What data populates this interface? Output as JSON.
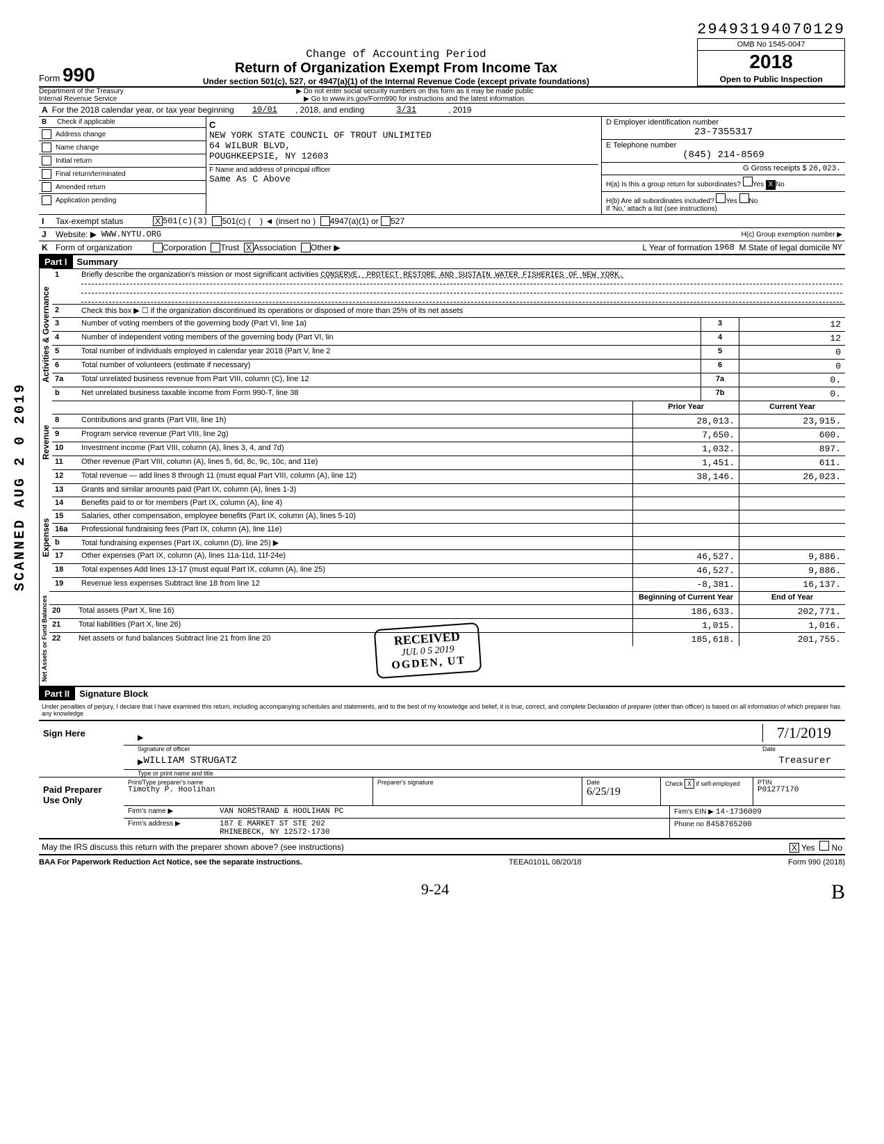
{
  "dln": "29493194070129",
  "form_no": "990",
  "form_word": "Form",
  "header": {
    "change": "Change of Accounting Period",
    "title": "Return of Organization Exempt From Income Tax",
    "sub": "Under section 501(c), 527, or 4947(a)(1) of the Internal Revenue Code (except private foundations)",
    "note1": "▶ Do not enter social security numbers on this form as it may be made public",
    "note2": "▶ Go to www.irs.gov/Form990 for instructions and the latest information.",
    "omb": "OMB No 1545-0047",
    "year": "2018",
    "open": "Open to Public Inspection"
  },
  "dept": {
    "l1": "Department of the Treasury",
    "l2": "Internal Revenue Service"
  },
  "row_a": {
    "pre": "For the 2018 calendar year, or tax year beginning",
    "begin": "10/01",
    "mid": ", 2018, and ending",
    "end": "3/31",
    "post": ", 2019"
  },
  "b_left": {
    "head": "Check if applicable",
    "items": [
      "Address change",
      "Name change",
      "Initial return",
      "Final return/terminated",
      "Amended return",
      "Application pending"
    ]
  },
  "b_mid": {
    "c_label": "C",
    "name": "NEW YORK STATE COUNCIL OF TROUT UNLIMITED",
    "addr1": "64 WILBUR BLVD,",
    "addr2": "POUGHKEEPSIE, NY 12603",
    "f_label": "F  Name and address of principal officer",
    "f_val": "Same As C Above"
  },
  "b_right": {
    "d_label": "D  Employer identification number",
    "d_val": "23-7355317",
    "e_label": "E  Telephone number",
    "e_val": "(845) 214-8569",
    "g_label": "G  Gross receipts $",
    "g_val": "26,023.",
    "ha_label": "H(a) Is this a group return for subordinates?",
    "ha_yes": "Yes",
    "ha_no": "No",
    "hb_label": "H(b) Are all subordinates included?",
    "hb_note": "If 'No,' attach a list (see instructions)"
  },
  "row_i": {
    "lbl": "I",
    "txt": "Tax-exempt status",
    "v1": "501(c)(3)",
    "v2": "501(c) (",
    "v3": ") ◄  (insert no )",
    "v4": "4947(a)(1) or",
    "v5": "527"
  },
  "row_j": {
    "lbl": "J",
    "txt": "Website: ▶",
    "val": "WWW.NYTU.ORG",
    "hc": "H(c) Group exemption number ▶"
  },
  "row_k": {
    "lbl": "K",
    "txt": "Form of organization",
    "opts": [
      "Corporation",
      "Trust",
      "Association",
      "Other ▶"
    ],
    "yof_l": "L Year of formation",
    "yof": "1968",
    "sld_l": "M State of legal domicile",
    "sld": "NY"
  },
  "part1": {
    "label": "Part I",
    "title": "Summary"
  },
  "mission_label": "Briefly describe the organization's mission or most significant activities",
  "mission": "CONSERVE, PROTECT RESTORE AND SUSTAIN WATER FISHERIES OF NEW YORK.",
  "gov_rows": [
    {
      "n": "2",
      "t": "Check this box ▶  ☐  if the organization discontinued its operations or disposed of more than 25% of its net assets"
    },
    {
      "n": "3",
      "t": "Number of voting members of the governing body (Part VI, line 1a)",
      "c": "3",
      "v": "12"
    },
    {
      "n": "4",
      "t": "Number of independent voting members of the governing body (Part VI, lin",
      "c": "4",
      "v": "12"
    },
    {
      "n": "5",
      "t": "Total number of individuals employed in calendar year 2018 (Part V, line 2",
      "c": "5",
      "v": "0"
    },
    {
      "n": "6",
      "t": "Total number of volunteers (estimate if necessary)",
      "c": "6",
      "v": "0"
    },
    {
      "n": "7a",
      "t": "Total unrelated business revenue from Part VIII, column (C), line 12",
      "c": "7a",
      "v": "0."
    },
    {
      "n": "b",
      "t": "Net unrelated business taxable income from Form 990-T, line 38",
      "c": "7b",
      "v": "0."
    }
  ],
  "col_heads": {
    "prior": "Prior Year",
    "current": "Current Year"
  },
  "rev_label": "Revenue",
  "rev_rows": [
    {
      "n": "8",
      "t": "Contributions and grants (Part VIII, line 1h)",
      "p": "28,013.",
      "c": "23,915."
    },
    {
      "n": "9",
      "t": "Program service revenue (Part VIII, line 2g)",
      "p": "7,650.",
      "c": "600."
    },
    {
      "n": "10",
      "t": "Investment income (Part VIII, column (A), lines 3, 4, and 7d)",
      "p": "1,032.",
      "c": "897."
    },
    {
      "n": "11",
      "t": "Other revenue (Part VIII, column (A), lines 5, 6d, 8c, 9c, 10c, and 11e)",
      "p": "1,451.",
      "c": "611."
    },
    {
      "n": "12",
      "t": "Total revenue — add lines 8 through 11 (must equal Part VIII, column (A), line 12)",
      "p": "38,146.",
      "c": "26,023."
    }
  ],
  "exp_label": "Expenses",
  "exp_rows": [
    {
      "n": "13",
      "t": "Grants and similar amounts paid (Part IX, column (A), lines 1-3)",
      "p": "",
      "c": ""
    },
    {
      "n": "14",
      "t": "Benefits paid to or for members (Part IX, column (A), line 4)",
      "p": "",
      "c": ""
    },
    {
      "n": "15",
      "t": "Salaries, other compensation, employee benefits (Part IX, column (A), lines 5-10)",
      "p": "",
      "c": ""
    },
    {
      "n": "16a",
      "t": "Professional fundraising fees (Part IX, column (A), line 11e)",
      "p": "",
      "c": ""
    },
    {
      "n": "b",
      "t": "Total fundraising expenses (Part IX, column (D), line 25) ▶",
      "p": "",
      "c": ""
    },
    {
      "n": "17",
      "t": "Other expenses (Part IX, column (A), lines 11a-11d, 11f-24e)",
      "p": "46,527.",
      "c": "9,886."
    },
    {
      "n": "18",
      "t": "Total expenses  Add lines 13-17 (must equal Part IX, column (A), line 25)",
      "p": "46,527.",
      "c": "9,886."
    },
    {
      "n": "19",
      "t": "Revenue less expenses  Subtract line 18 from line 12",
      "p": "-8,381.",
      "c": "16,137."
    }
  ],
  "net_label": "Net Assets or Fund Balances",
  "net_heads": {
    "begin": "Beginning of Current Year",
    "end": "End of Year"
  },
  "net_rows": [
    {
      "n": "20",
      "t": "Total assets (Part X, line 16)",
      "p": "186,633.",
      "c": "202,771."
    },
    {
      "n": "21",
      "t": "Total liabilities (Part X, line 26)",
      "p": "1,015.",
      "c": "1,016."
    },
    {
      "n": "22",
      "t": "Net assets or fund balances  Subtract line 21 from line 20",
      "p": "185,618.",
      "c": "201,755."
    }
  ],
  "part2": {
    "label": "Part II",
    "title": "Signature Block"
  },
  "perjury": "Under penalties of perjury, I declare that I have examined this return, including accompanying schedules and statements, and to the best of my knowledge and belief, it is true, correct, and complete  Declaration of preparer (other than officer) is based on all information of which preparer has any knowledge",
  "sign": {
    "here": "Sign Here",
    "sig_label": "Signature of officer",
    "date_label": "Date",
    "date_val": "7/1/2019",
    "name": "WILLIAM STRUGATZ",
    "name_label": "Type or print name and title",
    "title": "Treasurer"
  },
  "preparer": {
    "here": "Paid Preparer Use Only",
    "h1": "Print/Type preparer's name",
    "v1": "Timothy P. Hoolihan",
    "h2": "Preparer's signature",
    "h3": "Date",
    "v3": "6/25/19",
    "h4": "Check",
    "v4": "if self-employed",
    "h5": "PTIN",
    "v5": "P01277170",
    "firm_l": "Firm's name ▶",
    "firm_v": "VAN NORSTRAND & HOOLIHAN PC",
    "addr_l": "Firm's address ▶",
    "addr_v1": "187 E MARKET ST STE 202",
    "addr_v2": "RHINEBECK, NY 12572-1730",
    "ein_l": "Firm's EIN ▶",
    "ein_v": "14-1736009",
    "phone_l": "Phone no",
    "phone_v": "8458765200"
  },
  "discuss": "May the IRS discuss this return with the preparer shown above? (see instructions)",
  "discuss_yes": "Yes",
  "discuss_no": "No",
  "baa": "BAA  For Paperwork Reduction Act Notice, see the separate instructions.",
  "teea": "TEEA0101L  08/20/18",
  "form_foot": "Form 990 (2018)",
  "stamp_left": "SCANNED AUG 2 0 2019",
  "gov_vert": "Activities & Governance",
  "received": {
    "r1": "RECEIVED",
    "r2": "JUL 0 5 2019",
    "r3": "OGDEN, UT"
  },
  "hand1": "9-24",
  "hand2": "B"
}
